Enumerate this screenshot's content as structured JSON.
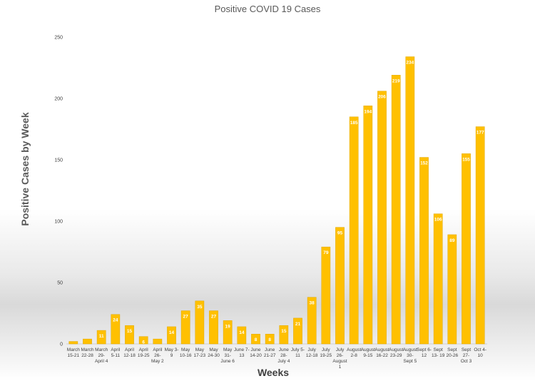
{
  "chart_data": {
    "type": "bar",
    "title": "Positive COVID 19 Cases",
    "xlabel": "Weeks",
    "ylabel": "Positive Cases by Week",
    "ylim": [
      0,
      250
    ],
    "yticks": [
      0,
      50,
      100,
      150,
      200,
      250
    ],
    "categories": [
      [
        "March",
        "15-21"
      ],
      [
        "March",
        "22-28"
      ],
      [
        "March",
        "29-",
        "April 4"
      ],
      [
        "April",
        "5-11"
      ],
      [
        "April",
        "12-18"
      ],
      [
        "April",
        "19-25"
      ],
      [
        "April",
        "26-",
        "May 2"
      ],
      [
        "May 3-",
        "9"
      ],
      [
        "May",
        "10-16"
      ],
      [
        "May",
        "17-23"
      ],
      [
        "May",
        "24-30"
      ],
      [
        "May",
        "31-",
        "June 6"
      ],
      [
        "June 7-",
        "13"
      ],
      [
        "June",
        "14-20"
      ],
      [
        "June",
        "21-27"
      ],
      [
        "June",
        "28-",
        "July 4"
      ],
      [
        "July 5-",
        "11"
      ],
      [
        "July",
        "12-18"
      ],
      [
        "July",
        "19-25"
      ],
      [
        "July",
        "26-",
        "August",
        "1"
      ],
      [
        "August",
        "2-8"
      ],
      [
        "August",
        "9-15"
      ],
      [
        "August",
        "16-22"
      ],
      [
        "August",
        "23-29"
      ],
      [
        "August",
        "30-",
        "Sept 5"
      ],
      [
        "Sept 6-",
        "12"
      ],
      [
        "Sept",
        "13- 19"
      ],
      [
        "Sept",
        "20-26"
      ],
      [
        "Sept",
        "27-",
        "Oct 3"
      ],
      [
        "Oct 4-",
        "10"
      ]
    ],
    "values": [
      2,
      4,
      11,
      24,
      15,
      6,
      4,
      14,
      27,
      35,
      27,
      19,
      14,
      8,
      8,
      15,
      21,
      38,
      79,
      95,
      185,
      194,
      206,
      219,
      234,
      152,
      106,
      89,
      155,
      177
    ],
    "data_labels": [
      "",
      "",
      "11",
      "24",
      "15",
      "6",
      "",
      "14",
      "27",
      "35",
      "27",
      "19",
      "14",
      "8",
      "8",
      "15",
      "21",
      "38",
      "79",
      "95",
      "185",
      "194",
      "206",
      "219",
      "234",
      "152",
      "106",
      "89",
      "155",
      "177"
    ],
    "bar_color": "#ffc000",
    "bar_edge_color": "#e0a800",
    "legend": "none",
    "grid": false
  }
}
